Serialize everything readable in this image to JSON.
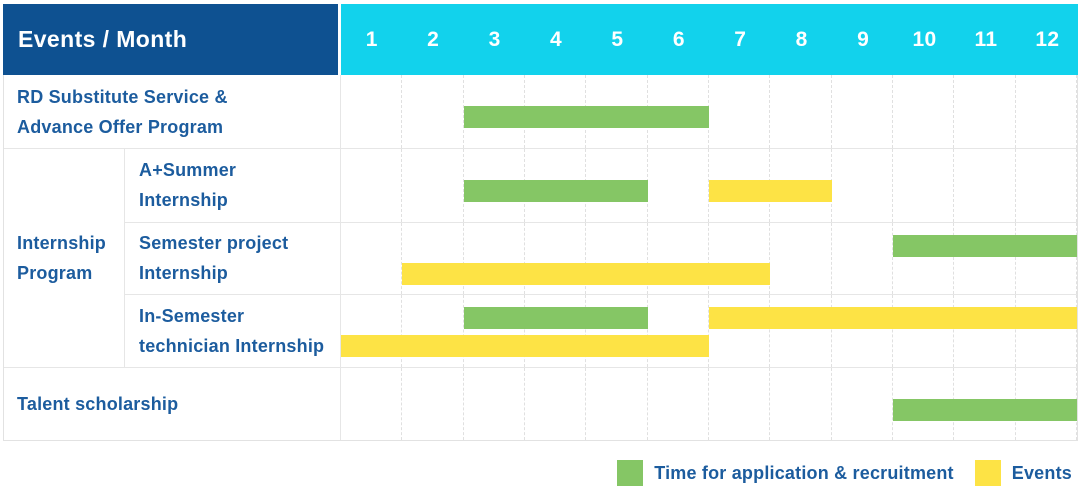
{
  "colors": {
    "header_blue": "#0E5191",
    "cyan": "#12D2EC",
    "label_blue": "#1C5C9E",
    "green": "#85C665",
    "yellow": "#FDE345"
  },
  "table": {
    "corner_label": "Events / Month",
    "months": [
      "1",
      "2",
      "3",
      "4",
      "5",
      "6",
      "7",
      "8",
      "9",
      "10",
      "11",
      "12"
    ],
    "sections": [
      {
        "type": "row",
        "label_lines": [
          "RD Substitute Service &",
          "Advance Offer Program"
        ],
        "bars": [
          {
            "kind": "application",
            "color": "green",
            "start": 3,
            "end": 6,
            "line": "single"
          }
        ]
      },
      {
        "type": "group",
        "label_lines": [
          "Internship",
          "Program"
        ],
        "rows": [
          {
            "label_lines": [
              "A+Summer",
              "Internship"
            ],
            "bars": [
              {
                "kind": "application",
                "color": "green",
                "start": 3,
                "end": 5,
                "line": "single"
              },
              {
                "kind": "event",
                "color": "yellow",
                "start": 7,
                "end": 8,
                "line": "single"
              }
            ]
          },
          {
            "label_lines": [
              "Semester project",
              "Internship"
            ],
            "bars": [
              {
                "kind": "application",
                "color": "green",
                "start": 10,
                "end": 12,
                "line": "upper"
              },
              {
                "kind": "event",
                "color": "yellow",
                "start": 2,
                "end": 7,
                "line": "lower"
              }
            ]
          },
          {
            "label_lines": [
              "In-Semester",
              "technician Internship"
            ],
            "bars": [
              {
                "kind": "application",
                "color": "green",
                "start": 3,
                "end": 5,
                "line": "upper"
              },
              {
                "kind": "event",
                "color": "yellow",
                "start": 7,
                "end": 12,
                "line": "upper"
              },
              {
                "kind": "event",
                "color": "yellow",
                "start": 1,
                "end": 6,
                "line": "lower"
              }
            ]
          }
        ]
      },
      {
        "type": "row",
        "label_lines": [
          "Talent scholarship"
        ],
        "bars": [
          {
            "kind": "application",
            "color": "green",
            "start": 10,
            "end": 12,
            "line": "single"
          }
        ]
      }
    ]
  },
  "legend": [
    {
      "swatch": "green",
      "label": "Time for application & recruitment"
    },
    {
      "swatch": "yellow",
      "label": "Events"
    }
  ],
  "chart_data": {
    "type": "gantt",
    "title": "Events / Month",
    "x_axis": {
      "label": "Month",
      "ticks": [
        1,
        2,
        3,
        4,
        5,
        6,
        7,
        8,
        9,
        10,
        11,
        12
      ],
      "range": [
        1,
        12
      ]
    },
    "legend_entries": [
      "Time for application & recruitment",
      "Events"
    ],
    "tasks": [
      {
        "event": "RD Substitute Service & Advance Offer Program",
        "group": null,
        "application_recruitment_months": [
          [
            3,
            6
          ]
        ],
        "event_months": []
      },
      {
        "event": "A+Summer Internship",
        "group": "Internship Program",
        "application_recruitment_months": [
          [
            3,
            5
          ]
        ],
        "event_months": [
          [
            7,
            8
          ]
        ]
      },
      {
        "event": "Semester project Internship",
        "group": "Internship Program",
        "application_recruitment_months": [
          [
            10,
            12
          ]
        ],
        "event_months": [
          [
            2,
            7
          ]
        ]
      },
      {
        "event": "In-Semester technician Internship",
        "group": "Internship Program",
        "application_recruitment_months": [
          [
            3,
            5
          ]
        ],
        "event_months": [
          [
            1,
            6
          ],
          [
            7,
            12
          ]
        ]
      },
      {
        "event": "Talent scholarship",
        "group": null,
        "application_recruitment_months": [
          [
            10,
            12
          ]
        ],
        "event_months": []
      }
    ]
  }
}
